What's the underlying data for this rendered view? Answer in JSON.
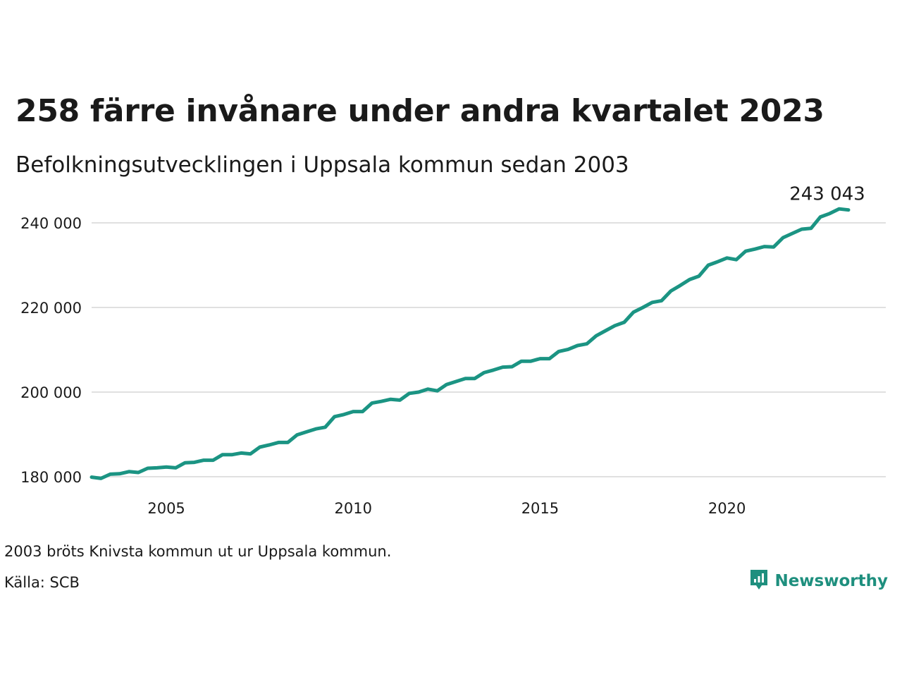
{
  "title": "258 färre invånare under andra kvartalet 2023",
  "subtitle": "Befolkningsutvecklingen i Uppsala kommun sedan 2003",
  "footnote": "2003 bröts Knivsta kommun ut ur Uppsala kommun.",
  "source": "Källa: SCB",
  "brand": {
    "name": "Newsworthy",
    "icon": "newsworthy-logo-icon",
    "color": "#1e8f7e"
  },
  "colors": {
    "line": "#1b9483",
    "grid": "#e0e0e0",
    "text": "#1a1a1a"
  },
  "chart_data": {
    "type": "line",
    "xlim": [
      2003.0,
      2024.25
    ],
    "ylim": [
      176000,
      246000
    ],
    "y_ticks": [
      180000,
      200000,
      220000,
      240000
    ],
    "y_tick_labels": [
      "180 000",
      "200 000",
      "220 000",
      "240 000"
    ],
    "x_ticks": [
      2005,
      2010,
      2015,
      2020
    ],
    "x_tick_labels": [
      "2005",
      "2010",
      "2015",
      "2020"
    ],
    "grid": "horizontal",
    "end_label": "243 043",
    "series": [
      {
        "x": [
          2003.0,
          2003.25,
          2003.5,
          2003.75,
          2004.0,
          2004.25,
          2004.5,
          2004.75,
          2005.0,
          2005.25,
          2005.5,
          2005.75,
          2006.0,
          2006.25,
          2006.5,
          2006.75,
          2007.0,
          2007.25,
          2007.5,
          2007.75,
          2008.0,
          2008.25,
          2008.5,
          2008.75,
          2009.0,
          2009.25,
          2009.5,
          2009.75,
          2010.0,
          2010.25,
          2010.5,
          2010.75,
          2011.0,
          2011.25,
          2011.5,
          2011.75,
          2012.0,
          2012.25,
          2012.5,
          2012.75,
          2013.0,
          2013.25,
          2013.5,
          2013.75,
          2014.0,
          2014.25,
          2014.5,
          2014.75,
          2015.0,
          2015.25,
          2015.5,
          2015.75,
          2016.0,
          2016.25,
          2016.5,
          2016.75,
          2017.0,
          2017.25,
          2017.5,
          2017.75,
          2018.0,
          2018.25,
          2018.5,
          2018.75,
          2019.0,
          2019.25,
          2019.5,
          2019.75,
          2020.0,
          2020.25,
          2020.5,
          2020.75,
          2021.0,
          2021.25,
          2021.5,
          2021.75,
          2022.0,
          2022.25,
          2022.5,
          2022.75,
          2023.0,
          2023.25
        ],
        "values": [
          179900,
          179600,
          180600,
          180700,
          181200,
          181000,
          182000,
          182100,
          182300,
          182100,
          183300,
          183400,
          183900,
          183900,
          185200,
          185200,
          185600,
          185400,
          187000,
          187500,
          188100,
          188100,
          189900,
          190600,
          191300,
          191700,
          194200,
          194700,
          195400,
          195400,
          197400,
          197800,
          198300,
          198100,
          199700,
          200000,
          200700,
          200300,
          201800,
          202500,
          203200,
          203200,
          204600,
          205200,
          205900,
          206000,
          207300,
          207300,
          207900,
          207900,
          209600,
          210100,
          211000,
          211400,
          213300,
          214500,
          215700,
          216500,
          218900,
          220000,
          221200,
          221600,
          223900,
          225200,
          226600,
          227400,
          230000,
          230800,
          231700,
          231300,
          233300,
          233800,
          234400,
          234300,
          236500,
          237500,
          238500,
          238700,
          241400,
          242200,
          243300,
          243043
        ]
      }
    ]
  }
}
